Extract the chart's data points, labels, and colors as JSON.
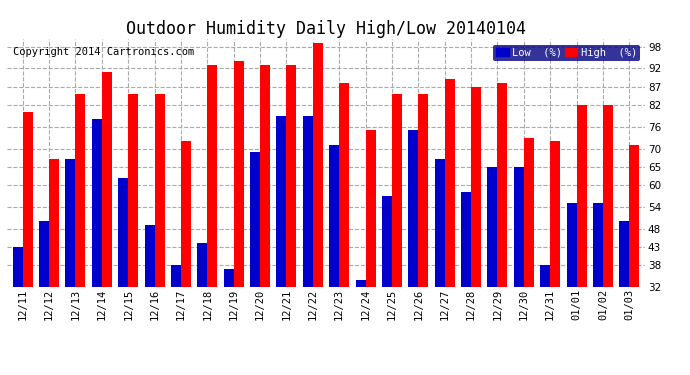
{
  "title": "Outdoor Humidity Daily High/Low 20140104",
  "copyright": "Copyright 2014 Cartronics.com",
  "legend_low": "Low  (%)",
  "legend_high": "High  (%)",
  "dates": [
    "12/11",
    "12/12",
    "12/13",
    "12/14",
    "12/15",
    "12/16",
    "12/17",
    "12/18",
    "12/19",
    "12/20",
    "12/21",
    "12/22",
    "12/23",
    "12/24",
    "12/25",
    "12/26",
    "12/27",
    "12/28",
    "12/29",
    "12/30",
    "12/31",
    "01/01",
    "01/02",
    "01/03"
  ],
  "high_values": [
    80,
    67,
    85,
    91,
    85,
    85,
    72,
    93,
    94,
    93,
    93,
    99,
    88,
    75,
    85,
    85,
    89,
    87,
    88,
    73,
    72,
    82,
    82,
    71
  ],
  "low_values": [
    43,
    50,
    67,
    78,
    62,
    49,
    38,
    44,
    37,
    69,
    79,
    79,
    71,
    34,
    57,
    75,
    67,
    58,
    65,
    65,
    38,
    55,
    55,
    50
  ],
  "bar_color_high": "#ff0000",
  "bar_color_low": "#0000cc",
  "bg_color": "#ffffff",
  "plot_bg_color": "#ffffff",
  "grid_color": "#aaaaaa",
  "ylim_min": 32,
  "ylim_max": 100,
  "yticks": [
    32,
    38,
    43,
    48,
    54,
    60,
    65,
    70,
    76,
    82,
    87,
    92,
    98
  ],
  "title_fontsize": 12,
  "copyright_fontsize": 7.5,
  "tick_fontsize": 7.5,
  "legend_fontsize": 7.5
}
